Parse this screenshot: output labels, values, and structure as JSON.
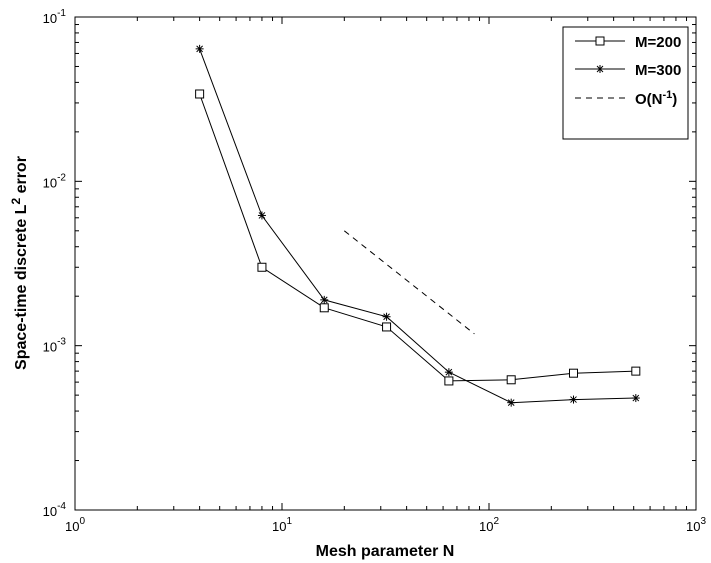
{
  "chart_data": {
    "type": "line",
    "x_scale": "log",
    "y_scale": "log",
    "xlim": [
      1,
      1000
    ],
    "ylim": [
      0.0001,
      0.1
    ],
    "xlabel": "Mesh parameter N",
    "ylabel_text": "Space-time discrete L",
    "ylabel_sup": "2",
    "ylabel_tail": " error",
    "x_ticks": [
      {
        "value": 1,
        "base": "10",
        "exp": "0"
      },
      {
        "value": 10,
        "base": "10",
        "exp": "1"
      },
      {
        "value": 100,
        "base": "10",
        "exp": "2"
      },
      {
        "value": 1000,
        "base": "10",
        "exp": "3"
      }
    ],
    "y_ticks": [
      {
        "value": 0.0001,
        "base": "10",
        "exp": "-4"
      },
      {
        "value": 0.001,
        "base": "10",
        "exp": "-3"
      },
      {
        "value": 0.01,
        "base": "10",
        "exp": "-2"
      },
      {
        "value": 0.1,
        "base": "10",
        "exp": "-1"
      }
    ],
    "grid": false,
    "legend_position": "top-right",
    "series": [
      {
        "name": "M=200",
        "marker": "square",
        "x": [
          4,
          8,
          16,
          32,
          64,
          128,
          256,
          512
        ],
        "y": [
          0.034,
          0.003,
          0.0017,
          0.0013,
          0.00061,
          0.00062,
          0.00068,
          0.0007
        ]
      },
      {
        "name": "M=300",
        "marker": "asterisk",
        "x": [
          4,
          8,
          16,
          32,
          64,
          128,
          256,
          512
        ],
        "y": [
          0.064,
          0.0062,
          0.0019,
          0.0015,
          0.00069,
          0.00045,
          0.00047,
          0.00048
        ]
      },
      {
        "name": "O(N",
        "name_sup": "-1",
        "name_tail": ")",
        "style": "dashed",
        "x": [
          20,
          85
        ],
        "y": [
          0.005,
          0.00118
        ]
      }
    ]
  }
}
